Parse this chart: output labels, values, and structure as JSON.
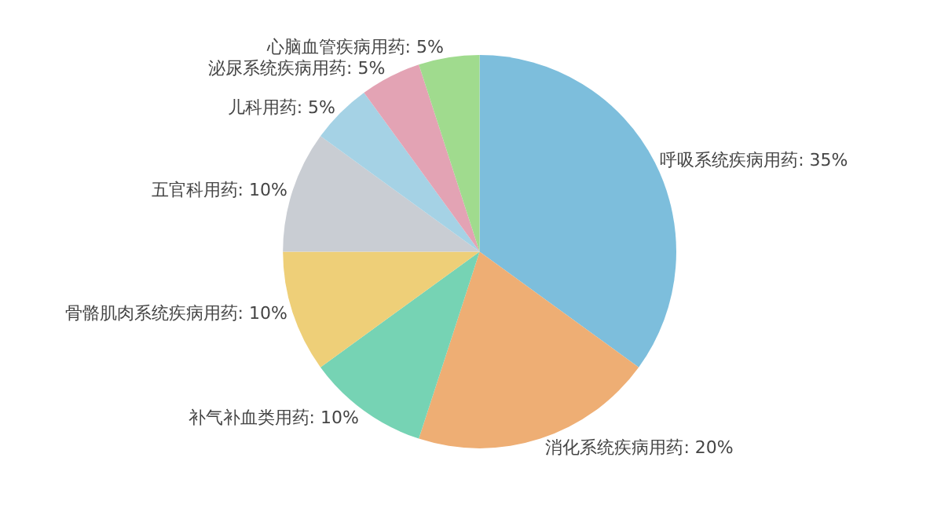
{
  "chart_data": {
    "type": "pie",
    "categories": [
      "呼吸系统疾病用药",
      "消化系统疾病用药",
      "补气补血类用药",
      "骨骼肌肉系统疾病用药",
      "五官科用药",
      "儿科用药",
      "泌尿系统疾病用药",
      "心脑血管疾病用药"
    ],
    "values": [
      35,
      20,
      10,
      10,
      10,
      5,
      5,
      5
    ],
    "value_labels": [
      "35%",
      "20%",
      "10%",
      "10%",
      "10%",
      "5%",
      "5%",
      "5%"
    ],
    "colors": [
      "#7dbedc",
      "#eeae74",
      "#76d3b4",
      "#eecf78",
      "#c9cdd3",
      "#a5d2e5",
      "#e3a3b4",
      "#a0db8e"
    ],
    "legend": false
  }
}
